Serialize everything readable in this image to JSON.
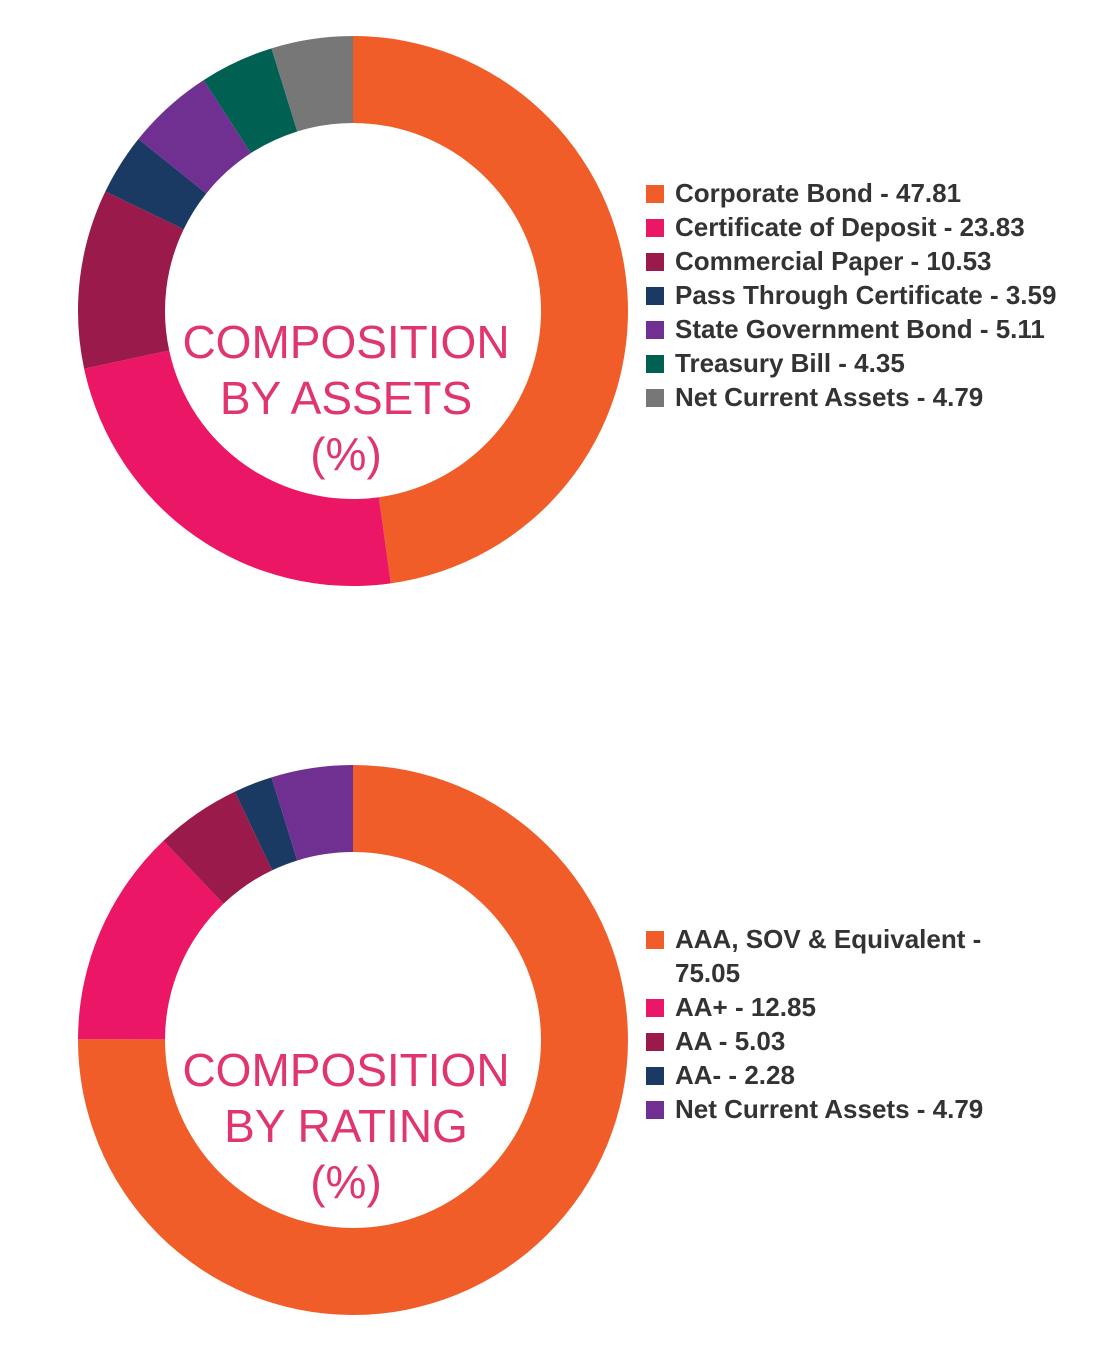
{
  "chart_data": [
    {
      "type": "pie",
      "title_lines": [
        "COMPOSITION",
        "BY ASSETS",
        "(%)"
      ],
      "series": [
        {
          "name": "Corporate Bond",
          "value": 47.81,
          "color": "#f05d28"
        },
        {
          "name": "Certificate of Deposit",
          "value": 23.83,
          "color": "#eb1666"
        },
        {
          "name": "Commercial Paper",
          "value": 10.53,
          "color": "#9a1b4b"
        },
        {
          "name": "Pass Through Certificate",
          "value": 3.59,
          "color": "#1b3a63"
        },
        {
          "name": "State Government Bond",
          "value": 5.11,
          "color": "#6f3092"
        },
        {
          "name": "Treasury Bill",
          "value": 4.35,
          "color": "#006152"
        },
        {
          "name": "Net Current Assets",
          "value": 4.79,
          "color": "#777777"
        }
      ],
      "legend_labels": [
        "Corporate Bond - 47.81",
        "Certificate of Deposit - 23.83",
        "Commercial Paper - 10.53",
        "Pass Through Certificate - 3.59",
        "State Government Bond - 5.11",
        "Treasury Bill - 4.35",
        "Net Current Assets - 4.79"
      ],
      "legend_placement": "right"
    },
    {
      "type": "pie",
      "title_lines": [
        "COMPOSITION",
        "BY RATING",
        "(%)"
      ],
      "series": [
        {
          "name": "AAA, SOV & Equivalent",
          "value": 75.05,
          "color": "#f05d28"
        },
        {
          "name": "AA+",
          "value": 12.85,
          "color": "#eb1666"
        },
        {
          "name": "AA",
          "value": 5.03,
          "color": "#9a1b4b"
        },
        {
          "name": "AA-",
          "value": 2.28,
          "color": "#1b3a63"
        },
        {
          "name": "Net Current Assets",
          "value": 4.79,
          "color": "#6f3092"
        }
      ],
      "legend_labels": [
        "AAA, SOV & Equivalent - 75.05",
        "AA+ - 12.85",
        "AA - 5.03",
        "AA- - 2.28",
        "Net Current Assets - 4.79"
      ],
      "legend_placement": "right"
    }
  ]
}
